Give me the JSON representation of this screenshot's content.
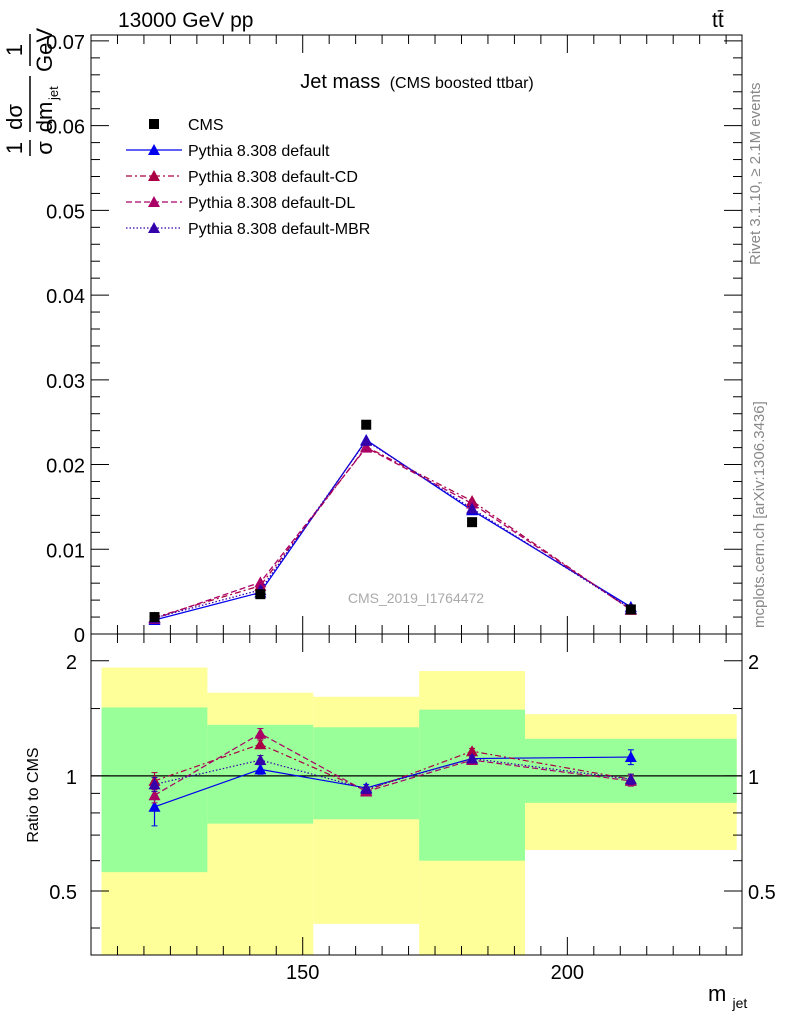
{
  "header": {
    "energy": "13000 GeV pp",
    "process": "tt̄"
  },
  "side_text": {
    "rivet": "Rivet 3.1.10, ≥ 2.1M events",
    "mcplots": "mcplots.cern.ch [arXiv:1306.3436]"
  },
  "chart_data": [
    {
      "type": "scatter",
      "title": "Jet mass",
      "subtitle": "(CMS boosted ttbar)",
      "watermark": "CMS_2019_I1764472",
      "ylabel": {
        "frac1": "1",
        "sigma": "σ",
        "dsigma": "dσ",
        "dm": "dm",
        "jet": "jet",
        "frac2": "1",
        "gev": "GeV"
      },
      "xlim": [
        110,
        233
      ],
      "ylim": [
        0,
        0.0707
      ],
      "yticks": [
        0,
        0.01,
        0.02,
        0.03,
        0.04,
        0.05,
        0.06,
        0.07
      ],
      "ytick_labels": [
        "0",
        "0.01",
        "0.02",
        "0.03",
        "0.04",
        "0.05",
        "0.06",
        "0.07"
      ],
      "legend_placement": "top-left",
      "legend": [
        {
          "label": "CMS",
          "marker": "square",
          "color": "#000000",
          "dash": "none"
        },
        {
          "label": "Pythia 8.308 default",
          "marker": "triangle",
          "color": "#0000ee",
          "dash": "none"
        },
        {
          "label": "Pythia 8.308 default-CD",
          "marker": "triangle",
          "color": "#aa0044",
          "dash": "6,3,2,3"
        },
        {
          "label": "Pythia 8.308 default-DL",
          "marker": "triangle",
          "color": "#aa0066",
          "dash": "6,3"
        },
        {
          "label": "Pythia 8.308 default-MBR",
          "marker": "triangle",
          "color": "#3300aa",
          "dash": "1.5,2"
        }
      ],
      "data": {
        "x": [
          122,
          142,
          162,
          182,
          212
        ],
        "values": [
          0.002,
          0.0047,
          0.0247,
          0.0132,
          0.0029
        ]
      },
      "series": [
        {
          "name": "Pythia 8.308 default",
          "color": "#0000ee",
          "dash": "none",
          "values": [
            0.00165,
            0.0049,
            0.0229,
            0.0146,
            0.0032
          ]
        },
        {
          "name": "Pythia 8.308 default-CD",
          "color": "#aa0044",
          "dash": "6,3,2,3",
          "values": [
            0.00195,
            0.0057,
            0.0221,
            0.0157,
            0.00285
          ]
        },
        {
          "name": "Pythia 8.308 default-DL",
          "color": "#aa0066",
          "dash": "6,3",
          "values": [
            0.0018,
            0.0061,
            0.022,
            0.0154,
            0.0029
          ]
        },
        {
          "name": "Pythia 8.308 default-MBR",
          "color": "#3300aa",
          "dash": "1.5,2",
          "values": [
            0.0019,
            0.0052,
            0.0228,
            0.0148,
            0.003
          ]
        }
      ]
    },
    {
      "type": "scatter",
      "ylabel": "Ratio to CMS",
      "xlabel": "m",
      "xlabel_sub": "jet",
      "xlim": [
        110,
        233
      ],
      "ylim": [
        0.34,
        2.35
      ],
      "log_y": true,
      "xticks": [
        150,
        200
      ],
      "xtick_labels": [
        "150",
        "200"
      ],
      "yticks": [
        0.5,
        1,
        2
      ],
      "ytick_labels": [
        "0.5",
        "1",
        "2"
      ],
      "bands": [
        {
          "x0": 112,
          "x1": 132,
          "green": [
            0.56,
            1.51
          ],
          "yellow": [
            0.3,
            1.92
          ]
        },
        {
          "x0": 132,
          "x1": 152,
          "green": [
            0.75,
            1.36
          ],
          "yellow": [
            0.3,
            1.65
          ]
        },
        {
          "x0": 152,
          "x1": 172,
          "green": [
            0.77,
            1.34
          ],
          "yellow": [
            0.41,
            1.61
          ]
        },
        {
          "x0": 172,
          "x1": 192,
          "green": [
            0.6,
            1.49
          ],
          "yellow": [
            0.3,
            1.88
          ]
        },
        {
          "x0": 192,
          "x1": 232,
          "green": [
            0.85,
            1.25
          ],
          "yellow": [
            0.64,
            1.45
          ]
        }
      ],
      "series": [
        {
          "name": "Pythia 8.308 default",
          "color": "#0000ee",
          "dash": "none",
          "values": [
            0.83,
            1.04,
            0.93,
            1.11,
            1.12
          ],
          "err": [
            0.09,
            0.03,
            0.02,
            0.02,
            0.05
          ]
        },
        {
          "name": "Pythia 8.308 default-CD",
          "color": "#aa0044",
          "dash": "6,3,2,3",
          "values": [
            0.97,
            1.21,
            0.915,
            1.16,
            0.98
          ],
          "err": [
            0.05,
            0.03,
            0.01,
            0.02,
            0.03
          ]
        },
        {
          "name": "Pythia 8.308 default-DL",
          "color": "#aa0066",
          "dash": "6,3",
          "values": [
            0.89,
            1.29,
            0.91,
            1.1,
            0.97
          ],
          "err": [
            0.04,
            0.04,
            0.01,
            0.02,
            0.03
          ]
        },
        {
          "name": "Pythia 8.308 default-MBR",
          "color": "#3300aa",
          "dash": "1.5,2",
          "values": [
            0.95,
            1.1,
            0.925,
            1.11,
            0.98
          ],
          "err": [
            0.04,
            0.03,
            0.01,
            0.02,
            0.03
          ]
        }
      ]
    }
  ]
}
